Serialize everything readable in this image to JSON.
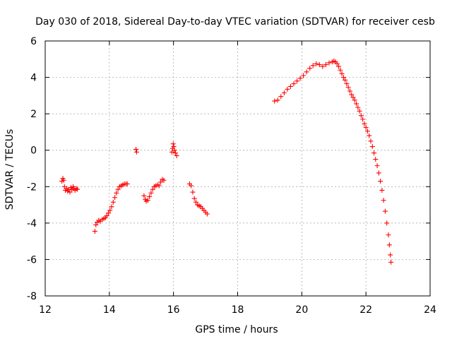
{
  "colors": {
    "series": "#ff0000",
    "text": "#000000",
    "grid": "#a0a0a0",
    "background": "#ffffff"
  },
  "chart_data": {
    "type": "scatter",
    "title": "Day 030 of 2018, Sidereal Day-to-day VTEC variation (SDTVAR) for receiver cesb",
    "xlabel": "GPS time / hours",
    "ylabel": "SDTVAR / TECUs",
    "xlim": [
      12,
      24
    ],
    "ylim": [
      -8,
      6
    ],
    "xticks": [
      12,
      14,
      16,
      18,
      20,
      22,
      24
    ],
    "yticks": [
      -8,
      -6,
      -4,
      -2,
      0,
      2,
      4,
      6
    ],
    "grid": true,
    "marker": "plus",
    "series": [
      {
        "name": "SDTVAR",
        "points": [
          [
            12.52,
            -1.7
          ],
          [
            12.55,
            -1.55
          ],
          [
            12.58,
            -1.65
          ],
          [
            12.6,
            -2.0
          ],
          [
            12.63,
            -2.2
          ],
          [
            12.67,
            -2.1
          ],
          [
            12.7,
            -2.25
          ],
          [
            12.73,
            -2.15
          ],
          [
            12.77,
            -2.3
          ],
          [
            12.8,
            -2.05
          ],
          [
            12.83,
            -2.15
          ],
          [
            12.87,
            -2.0
          ],
          [
            12.9,
            -2.1
          ],
          [
            12.93,
            -2.2
          ],
          [
            12.97,
            -2.1
          ],
          [
            13.0,
            -2.15
          ],
          [
            13.55,
            -4.45
          ],
          [
            13.58,
            -4.1
          ],
          [
            13.62,
            -3.95
          ],
          [
            13.67,
            -3.85
          ],
          [
            13.72,
            -3.9
          ],
          [
            13.78,
            -3.8
          ],
          [
            13.83,
            -3.75
          ],
          [
            13.88,
            -3.7
          ],
          [
            13.92,
            -3.6
          ],
          [
            13.97,
            -3.45
          ],
          [
            14.02,
            -3.3
          ],
          [
            14.07,
            -3.1
          ],
          [
            14.12,
            -2.85
          ],
          [
            14.17,
            -2.6
          ],
          [
            14.22,
            -2.35
          ],
          [
            14.27,
            -2.15
          ],
          [
            14.32,
            -2.0
          ],
          [
            14.37,
            -1.95
          ],
          [
            14.42,
            -1.9
          ],
          [
            14.47,
            -1.85
          ],
          [
            14.52,
            -1.85
          ],
          [
            14.56,
            -1.85
          ],
          [
            14.83,
            0.05
          ],
          [
            14.85,
            -0.1
          ],
          [
            15.08,
            -2.5
          ],
          [
            15.12,
            -2.7
          ],
          [
            15.15,
            -2.8
          ],
          [
            15.2,
            -2.75
          ],
          [
            15.25,
            -2.55
          ],
          [
            15.3,
            -2.35
          ],
          [
            15.35,
            -2.15
          ],
          [
            15.4,
            -2.0
          ],
          [
            15.45,
            -1.95
          ],
          [
            15.5,
            -1.9
          ],
          [
            15.55,
            -1.95
          ],
          [
            15.6,
            -1.75
          ],
          [
            15.65,
            -1.6
          ],
          [
            15.7,
            -1.65
          ],
          [
            15.95,
            -0.1
          ],
          [
            15.97,
            0.1
          ],
          [
            15.99,
            0.35
          ],
          [
            16.01,
            0.2
          ],
          [
            16.03,
            0.0
          ],
          [
            16.06,
            -0.15
          ],
          [
            16.1,
            -0.3
          ],
          [
            16.5,
            -1.85
          ],
          [
            16.55,
            -1.95
          ],
          [
            16.6,
            -2.3
          ],
          [
            16.65,
            -2.65
          ],
          [
            16.7,
            -2.85
          ],
          [
            16.75,
            -3.0
          ],
          [
            16.8,
            -3.05
          ],
          [
            16.85,
            -3.1
          ],
          [
            16.9,
            -3.2
          ],
          [
            16.95,
            -3.3
          ],
          [
            17.0,
            -3.4
          ],
          [
            17.05,
            -3.5
          ],
          [
            19.15,
            2.7
          ],
          [
            19.25,
            2.75
          ],
          [
            19.35,
            2.95
          ],
          [
            19.45,
            3.15
          ],
          [
            19.55,
            3.35
          ],
          [
            19.65,
            3.5
          ],
          [
            19.75,
            3.65
          ],
          [
            19.85,
            3.8
          ],
          [
            19.95,
            3.95
          ],
          [
            20.05,
            4.1
          ],
          [
            20.15,
            4.3
          ],
          [
            20.25,
            4.5
          ],
          [
            20.35,
            4.65
          ],
          [
            20.45,
            4.75
          ],
          [
            20.55,
            4.7
          ],
          [
            20.65,
            4.6
          ],
          [
            20.75,
            4.7
          ],
          [
            20.85,
            4.8
          ],
          [
            20.95,
            4.85
          ],
          [
            21.0,
            4.9
          ],
          [
            21.05,
            4.85
          ],
          [
            21.1,
            4.75
          ],
          [
            21.15,
            4.6
          ],
          [
            21.2,
            4.4
          ],
          [
            21.25,
            4.2
          ],
          [
            21.3,
            4.0
          ],
          [
            21.35,
            3.85
          ],
          [
            21.4,
            3.65
          ],
          [
            21.45,
            3.45
          ],
          [
            21.5,
            3.25
          ],
          [
            21.55,
            3.05
          ],
          [
            21.6,
            2.9
          ],
          [
            21.65,
            2.75
          ],
          [
            21.7,
            2.55
          ],
          [
            21.75,
            2.35
          ],
          [
            21.8,
            2.15
          ],
          [
            21.85,
            1.9
          ],
          [
            21.9,
            1.7
          ],
          [
            21.95,
            1.45
          ],
          [
            22.0,
            1.25
          ],
          [
            22.05,
            1.05
          ],
          [
            22.1,
            0.8
          ],
          [
            22.15,
            0.5
          ],
          [
            22.2,
            0.2
          ],
          [
            22.25,
            -0.15
          ],
          [
            22.3,
            -0.5
          ],
          [
            22.35,
            -0.85
          ],
          [
            22.4,
            -1.25
          ],
          [
            22.45,
            -1.7
          ],
          [
            22.5,
            -2.2
          ],
          [
            22.55,
            -2.75
          ],
          [
            22.6,
            -3.35
          ],
          [
            22.65,
            -4.0
          ],
          [
            22.7,
            -4.65
          ],
          [
            22.73,
            -5.2
          ],
          [
            22.76,
            -5.75
          ],
          [
            22.78,
            -6.15
          ]
        ]
      }
    ]
  }
}
